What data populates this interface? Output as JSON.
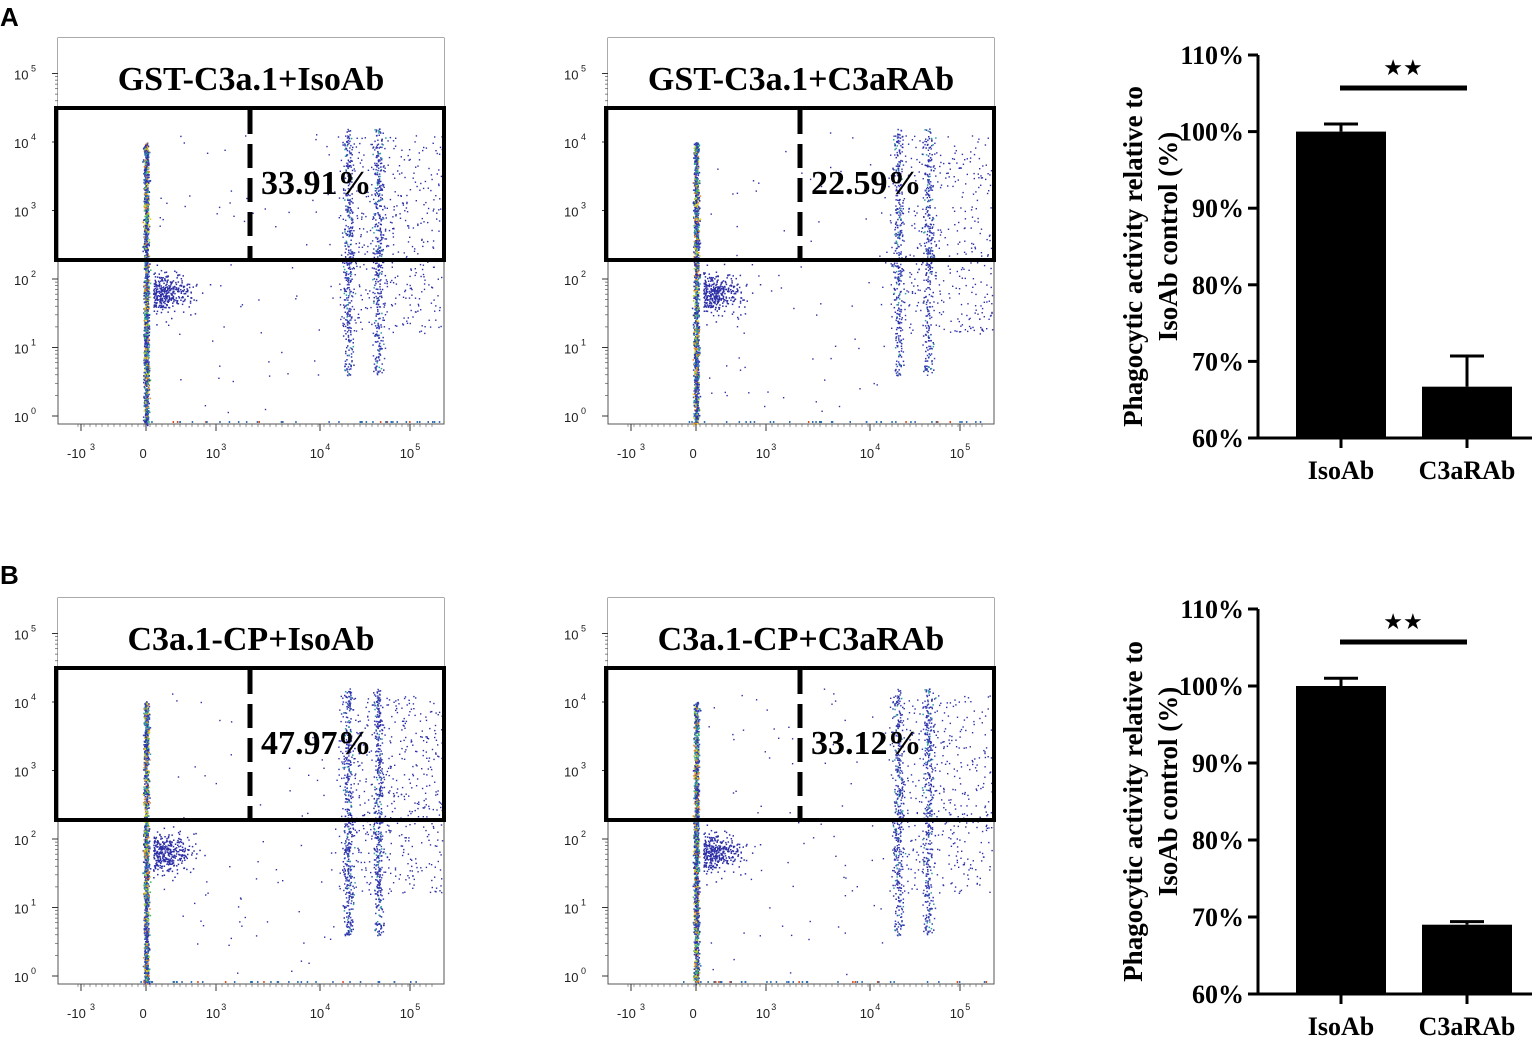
{
  "panels": [
    {
      "letter": "A",
      "flow": [
        {
          "title": "GST-C3a.1+IsoAb",
          "gate_percent": "33.91%",
          "gate_value": 33.91
        },
        {
          "title": "GST-C3a.1+C3aRAb",
          "gate_percent": "22.59%",
          "gate_value": 22.59
        }
      ]
    },
    {
      "letter": "B",
      "flow": [
        {
          "title": "C3a.1-CP+IsoAb",
          "gate_percent": "47.97%",
          "gate_value": 47.97
        },
        {
          "title": "C3a.1-CP+C3aRAb",
          "gate_percent": "33.12%",
          "gate_value": 33.12
        }
      ]
    }
  ],
  "flow_axes": {
    "x_ticks": [
      {
        "base": "-10",
        "exp": "3",
        "value": -1000
      },
      {
        "base": "0",
        "exp": "",
        "value": 0
      },
      {
        "base": "10",
        "exp": "3",
        "value": 1000
      },
      {
        "base": "10",
        "exp": "4",
        "value": 10000
      },
      {
        "base": "10",
        "exp": "5",
        "value": 100000
      }
    ],
    "y_ticks": [
      {
        "base": "10",
        "exp": "0",
        "value": 1
      },
      {
        "base": "10",
        "exp": "1",
        "value": 10
      },
      {
        "base": "10",
        "exp": "2",
        "value": 100
      },
      {
        "base": "10",
        "exp": "3",
        "value": 1000
      },
      {
        "base": "10",
        "exp": "4",
        "value": 10000
      },
      {
        "base": "10",
        "exp": "5",
        "value": 100000
      }
    ]
  },
  "chart_data": [
    {
      "type": "bar",
      "panel": "A",
      "categories": [
        "IsoAb",
        "C3aRAb"
      ],
      "values": [
        100,
        66.7
      ],
      "error": [
        1.0,
        4.0
      ],
      "ylabel_line1": "Phagocytic activity relative to",
      "ylabel_line2": "IsoAb control (%)",
      "ylim": [
        60,
        110
      ],
      "yticks": [
        60,
        70,
        80,
        90,
        100,
        110
      ],
      "ytick_labels": [
        "60%",
        "70%",
        "80%",
        "90%",
        "100%",
        "110%"
      ],
      "significance": "★★"
    },
    {
      "type": "bar",
      "panel": "B",
      "categories": [
        "IsoAb",
        "C3aRAb"
      ],
      "values": [
        100,
        69.0
      ],
      "error": [
        1.0,
        0.4
      ],
      "ylabel_line1": "Phagocytic activity relative to",
      "ylabel_line2": "IsoAb control (%)",
      "ylim": [
        60,
        110
      ],
      "yticks": [
        60,
        70,
        80,
        90,
        100,
        110
      ],
      "ytick_labels": [
        "60%",
        "70%",
        "80%",
        "90%",
        "100%",
        "110%"
      ],
      "significance": "★★"
    }
  ]
}
